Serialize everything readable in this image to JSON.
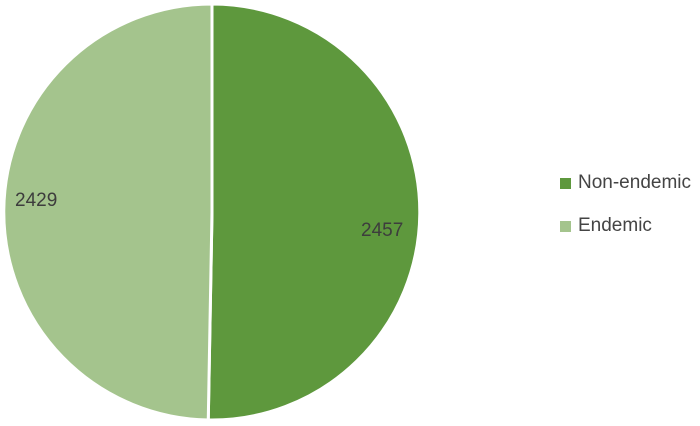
{
  "chart_data": {
    "type": "pie",
    "title": "",
    "labels": [
      "Non-endemic",
      "Endemic"
    ],
    "values": [
      2457,
      2429
    ],
    "colors": [
      "#5e983d",
      "#a4c48d"
    ],
    "slice_border_color": "#ffffff",
    "start_angle_deg": 0,
    "direction": "clockwise",
    "legend_position": "right",
    "data_labels_shown": true,
    "data_label_color": "#3d3d3d",
    "legend_text_color": "#444444",
    "background_color": "#ffffff"
  }
}
